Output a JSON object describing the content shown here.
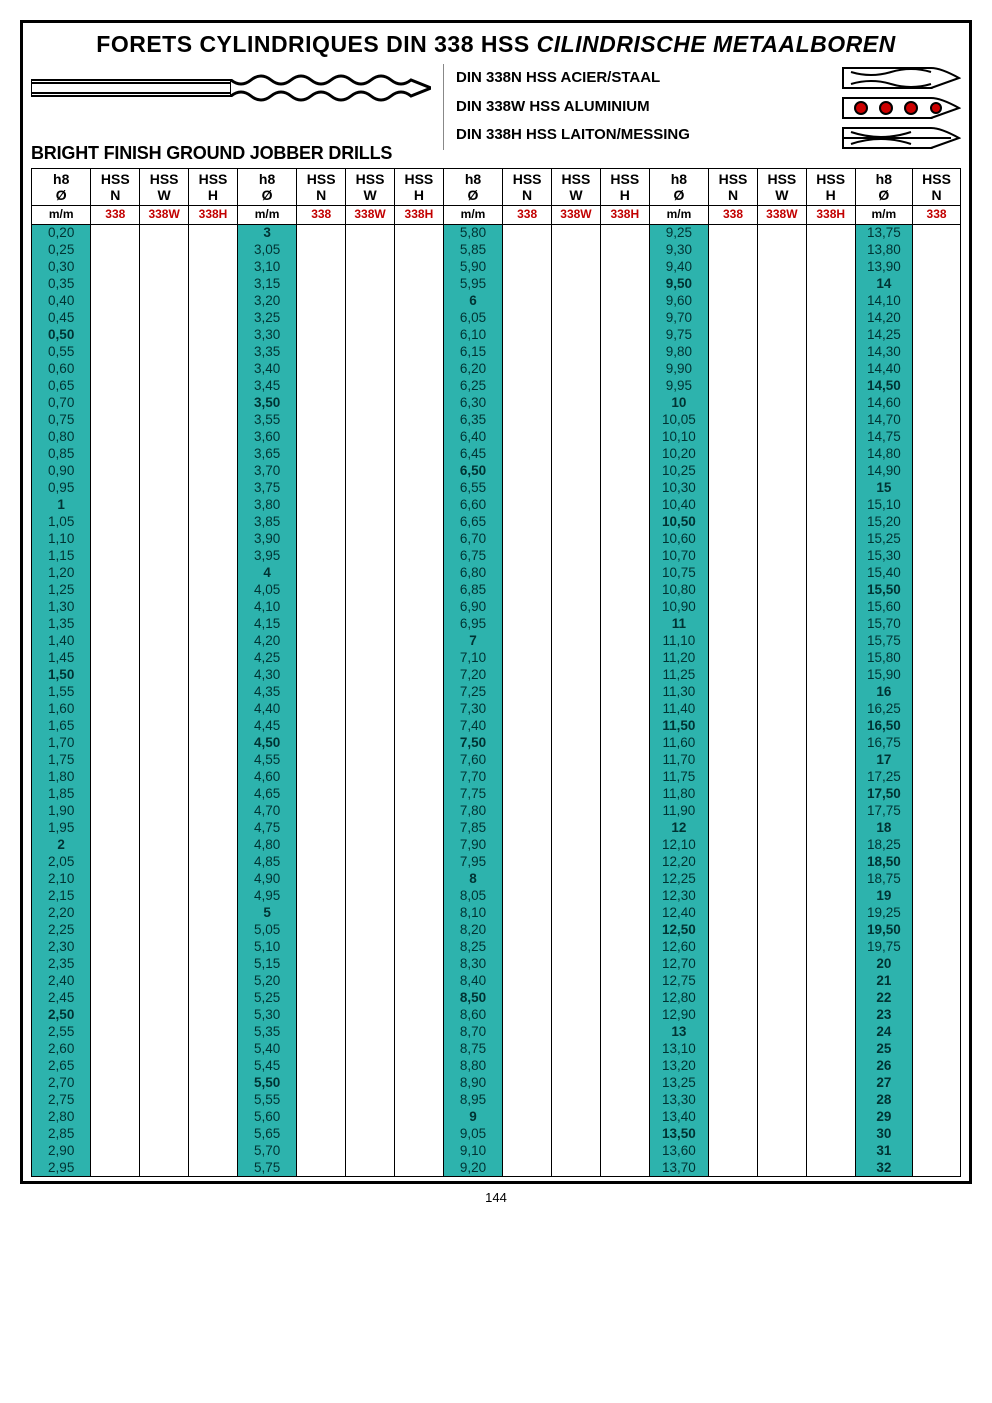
{
  "title_part1": "FORETS CYLINDRIQUES DIN 338 HSS ",
  "title_part2": "CILINDRISCHE METAALBOREN",
  "subtitle": "BRIGHT FINISH GROUND  JOBBER DRILLS",
  "mid_lines": [
    "DIN 338N HSS ACIER/STAAL",
    "DIN 338W HSS ALUMINIUM",
    "DIN 338H HSS LAITON/MESSING"
  ],
  "page_number": "144",
  "colors": {
    "dia_bg": "#2db3ad",
    "dia_fg": "#003333",
    "red": "#c20000",
    "border": "#000000"
  },
  "header": {
    "top": [
      "h8\nØ",
      "HSS\nN",
      "HSS\nW",
      "HSS\nH"
    ],
    "sub_dia": "m/m",
    "sub_vals": [
      "338",
      "338W",
      "338H"
    ]
  },
  "blocks": [
    {
      "dia": [
        "0,20",
        "0,25",
        "0,30",
        "0,35",
        "0,40",
        "0,45",
        "0,50*",
        "0,55",
        "0,60",
        "0,65",
        "0,70",
        "0,75",
        "0,80",
        "0,85",
        "0,90",
        "0,95",
        "1*",
        "1,05",
        "1,10",
        "1,15",
        "1,20",
        "1,25",
        "1,30",
        "1,35",
        "1,40",
        "1,45",
        "1,50*",
        "1,55",
        "1,60",
        "1,65",
        "1,70",
        "1,75",
        "1,80",
        "1,85",
        "1,90",
        "1,95",
        "2*",
        "2,05",
        "2,10",
        "2,15",
        "2,20",
        "2,25",
        "2,30",
        "2,35",
        "2,40",
        "2,45",
        "2,50*",
        "2,55",
        "2,60",
        "2,65",
        "2,70",
        "2,75",
        "2,80",
        "2,85",
        "2,90",
        "2,95"
      ]
    },
    {
      "dia": [
        "3*",
        "3,05",
        "3,10",
        "3,15",
        "3,20",
        "3,25",
        "3,30",
        "3,35",
        "3,40",
        "3,45",
        "3,50*",
        "3,55",
        "3,60",
        "3,65",
        "3,70",
        "3,75",
        "3,80",
        "3,85",
        "3,90",
        "3,95",
        "4*",
        "4,05",
        "4,10",
        "4,15",
        "4,20",
        "4,25",
        "4,30",
        "4,35",
        "4,40",
        "4,45",
        "4,50*",
        "4,55",
        "4,60",
        "4,65",
        "4,70",
        "4,75",
        "4,80",
        "4,85",
        "4,90",
        "4,95",
        "5*",
        "5,05",
        "5,10",
        "5,15",
        "5,20",
        "5,25",
        "5,30",
        "5,35",
        "5,40",
        "5,45",
        "5,50*",
        "5,55",
        "5,60",
        "5,65",
        "5,70",
        "5,75"
      ]
    },
    {
      "dia": [
        "5,80",
        "5,85",
        "5,90",
        "5,95",
        "6*",
        "6,05",
        "6,10",
        "6,15",
        "6,20",
        "6,25",
        "6,30",
        "6,35",
        "6,40",
        "6,45",
        "6,50*",
        "6,55",
        "6,60",
        "6,65",
        "6,70",
        "6,75",
        "6,80",
        "6,85",
        "6,90",
        "6,95",
        "7*",
        "7,10",
        "7,20",
        "7,25",
        "7,30",
        "7,40",
        "7,50*",
        "7,60",
        "7,70",
        "7,75",
        "7,80",
        "7,85",
        "7,90",
        "7,95",
        "8*",
        "8,05",
        "8,10",
        "8,20",
        "8,25",
        "8,30",
        "8,40",
        "8,50*",
        "8,60",
        "8,70",
        "8,75",
        "8,80",
        "8,90",
        "8,95",
        "9*",
        "9,05",
        "9,10",
        "9,20"
      ]
    },
    {
      "dia": [
        "9,25",
        "9,30",
        "9,40",
        "9,50*",
        "9,60",
        "9,70",
        "9,75",
        "9,80",
        "9,90",
        "9,95",
        "10*",
        "10,05",
        "10,10",
        "10,20",
        "10,25",
        "10,30",
        "10,40",
        "10,50*",
        "10,60",
        "10,70",
        "10,75",
        "10,80",
        "10,90",
        "11*",
        "11,10",
        "11,20",
        "11,25",
        "11,30",
        "11,40",
        "11,50*",
        "11,60",
        "11,70",
        "11,75",
        "11,80",
        "11,90",
        "12*",
        "12,10",
        "12,20",
        "12,25",
        "12,30",
        "12,40",
        "12,50*",
        "12,60",
        "12,70",
        "12,75",
        "12,80",
        "12,90",
        "13*",
        "13,10",
        "13,20",
        "13,25",
        "13,30",
        "13,40",
        "13,50*",
        "13,60",
        "13,70"
      ]
    },
    {
      "dia": [
        "13,75",
        "13,80",
        "13,90",
        "14*",
        "14,10",
        "14,20",
        "14,25",
        "14,30",
        "14,40",
        "14,50*",
        "14,60",
        "14,70",
        "14,75",
        "14,80",
        "14,90",
        "15*",
        "15,10",
        "15,20",
        "15,25",
        "15,30",
        "15,40",
        "15,50*",
        "15,60",
        "15,70",
        "15,75",
        "15,80",
        "15,90",
        "16*",
        "16,25",
        "16,50*",
        "16,75",
        "17*",
        "17,25",
        "17,50*",
        "17,75",
        "18*",
        "18,25",
        "18,50*",
        "18,75",
        "19*",
        "19,25",
        "19,50*",
        "19,75",
        "20*",
        "21*",
        "22*",
        "23*",
        "24*",
        "25*",
        "26*",
        "27*",
        "28*",
        "29*",
        "30*",
        "31*",
        "32*"
      ],
      "cols": 1
    }
  ]
}
